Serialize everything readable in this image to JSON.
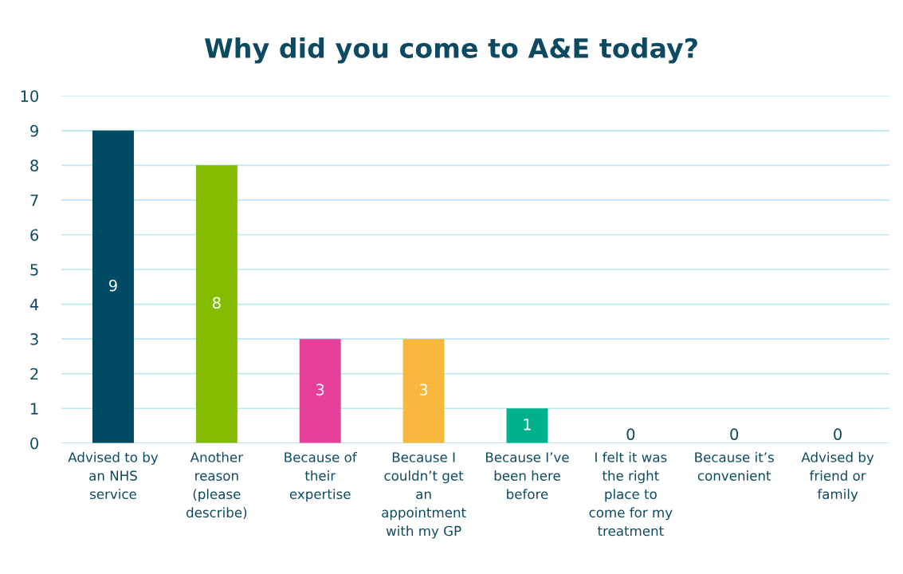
{
  "chart_data": {
    "type": "bar",
    "title": "Why did you come to A&E today?",
    "categories": [
      "Advised to by\nan NHS\nservice",
      "Another\nreason\n(please\ndescribe)",
      "Because of\ntheir\nexpertise",
      "Because I\ncouldn’t get\nan\nappointment\nwith my GP",
      "Because I’ve\nbeen here\nbefore",
      "I felt it was\nthe right\nplace to\ncome for my\ntreatment",
      "Because it’s\nconvenient",
      "Advised by\nfriend or\nfamily"
    ],
    "values": [
      9,
      8,
      3,
      3,
      1,
      0,
      0,
      0
    ],
    "colors": [
      "#004a64",
      "#84bd00",
      "#e5409a",
      "#f8b73d",
      "#00b18d",
      "#004a64",
      "#004a64",
      "#004a64"
    ],
    "ylim": [
      0,
      10
    ],
    "yticks": [
      0,
      1,
      2,
      3,
      4,
      5,
      6,
      7,
      8,
      9,
      10
    ],
    "grid": "y",
    "data_labels": true
  }
}
